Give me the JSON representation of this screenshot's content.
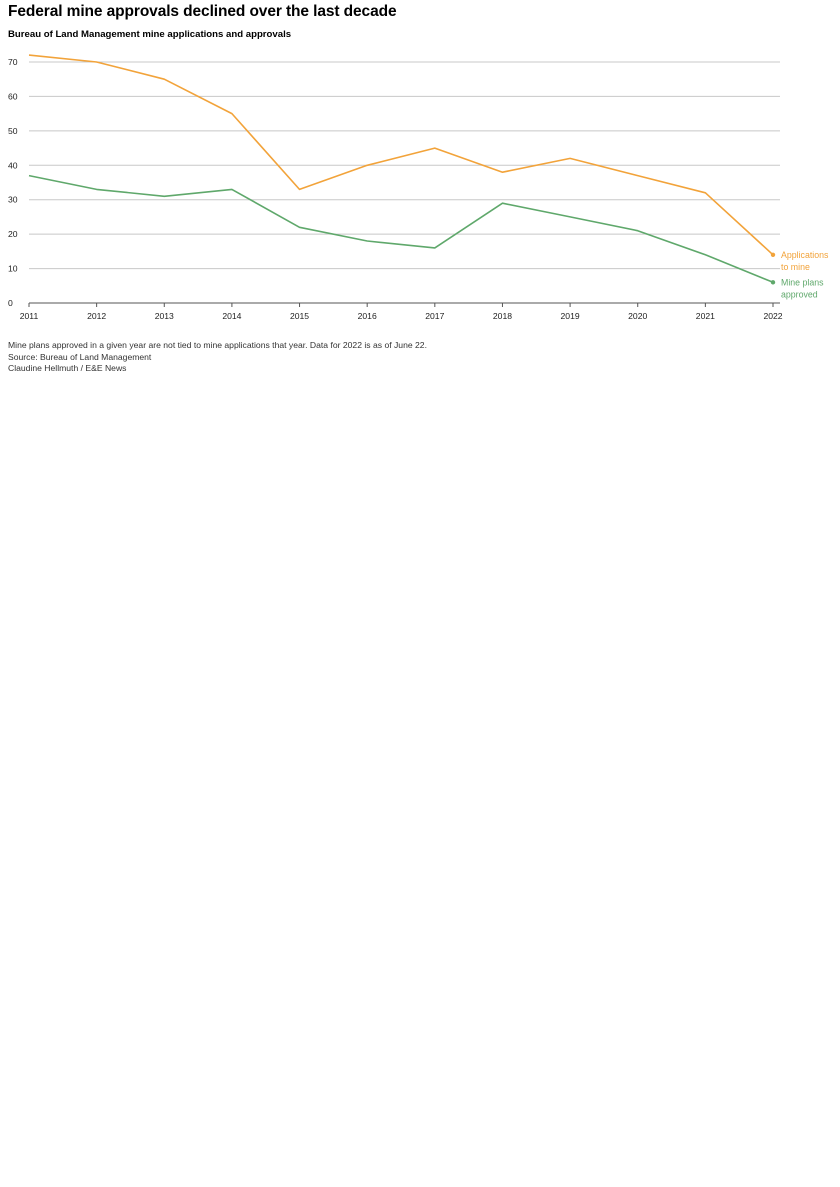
{
  "chart_data": {
    "type": "line",
    "title": "Federal mine approvals declined over the last decade",
    "subtitle": "Bureau of Land Management mine applications and approvals",
    "x": [
      2011,
      2012,
      2013,
      2014,
      2015,
      2016,
      2017,
      2018,
      2019,
      2020,
      2021,
      2022
    ],
    "ylim": [
      0,
      70
    ],
    "yticks": [
      0,
      10,
      20,
      30,
      40,
      50,
      60,
      70
    ],
    "grid": true,
    "series": [
      {
        "name": "Applications to mine",
        "label_lines": [
          "Applications",
          "to mine"
        ],
        "color": "#f2a33a",
        "values": [
          72,
          70,
          65,
          55,
          33,
          40,
          45,
          38,
          42,
          37,
          32,
          14
        ]
      },
      {
        "name": "Mine plans approved",
        "label_lines": [
          "Mine plans",
          "approved"
        ],
        "color": "#5fa86b",
        "values": [
          37,
          33,
          31,
          33,
          22,
          18,
          16,
          29,
          25,
          21,
          14,
          6
        ]
      }
    ]
  },
  "notes": {
    "note": "Mine plans approved in a given year are not tied to mine applications that year. Data for 2022 is as of June 22.",
    "source": "Source: Bureau of Land Management",
    "credit": "Claudine Hellmuth / E&E News"
  }
}
